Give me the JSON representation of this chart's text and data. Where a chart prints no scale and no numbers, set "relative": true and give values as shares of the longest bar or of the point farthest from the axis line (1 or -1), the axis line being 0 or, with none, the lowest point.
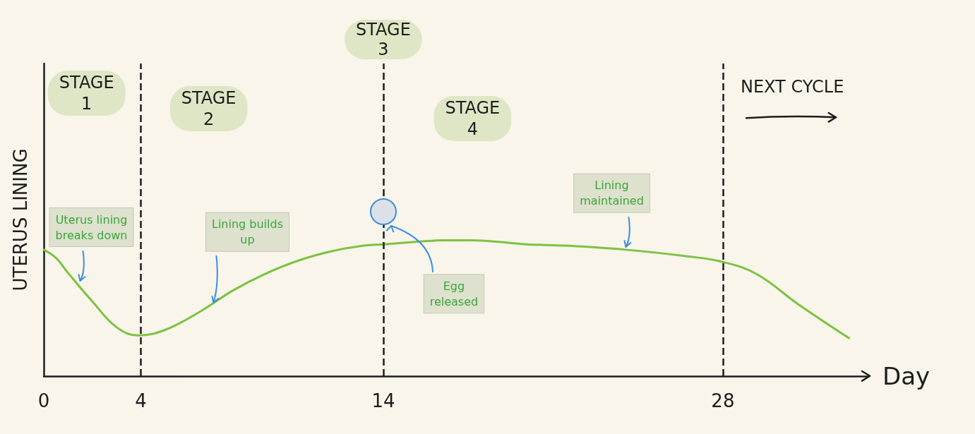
{
  "chart_data": {
    "type": "line",
    "relative": true,
    "xlabel": "Day",
    "ylabel": "UTERUS LINING",
    "color": "#7cc242",
    "x": [
      0,
      0.5,
      1.0,
      2.0,
      3.0,
      3.9,
      5.0,
      6.4,
      7.8,
      9.1,
      10.5,
      11.9,
      13.2,
      14.0,
      15.5,
      16.5,
      17.6,
      19.9,
      21.5,
      24.0,
      26.6,
      28.0,
      29.4,
      31.1,
      33.2
    ],
    "values": [
      0.93,
      0.87,
      0.76,
      0.55,
      0.36,
      0.3,
      0.34,
      0.47,
      0.63,
      0.75,
      0.85,
      0.92,
      0.96,
      0.97,
      0.99,
      1.0,
      1.0,
      0.97,
      0.96,
      0.93,
      0.88,
      0.84,
      0.75,
      0.53,
      0.28
    ],
    "xlim": [
      0,
      34
    ],
    "xticks": [
      0,
      4,
      14,
      28
    ],
    "tick_labels": "x",
    "marker": "none",
    "line_style": "solid",
    "ref_lines": [
      {
        "axis": "x",
        "value": 4,
        "color": "#1c1c1c",
        "line_style": "dashed"
      },
      {
        "axis": "x",
        "value": 14,
        "label": "STAGE\n3",
        "color": "#1c1c1c",
        "line_style": "dashed"
      },
      {
        "axis": "x",
        "value": 28,
        "color": "#1c1c1c",
        "line_style": "dashed"
      }
    ],
    "annotations": [
      "STAGE\n1",
      "STAGE\n2",
      "STAGE\n4",
      "NEXT CYCLE",
      {
        "text": "Uterus lining\nbreaks down",
        "x": 1.5,
        "y": 0.68
      },
      {
        "text": "Lining builds\nup",
        "x": 7.0,
        "y": 0.52
      },
      "Egg\nreleased",
      {
        "text": "Lining\nmaintained",
        "x": 24.0,
        "y": 0.93
      }
    ]
  }
}
